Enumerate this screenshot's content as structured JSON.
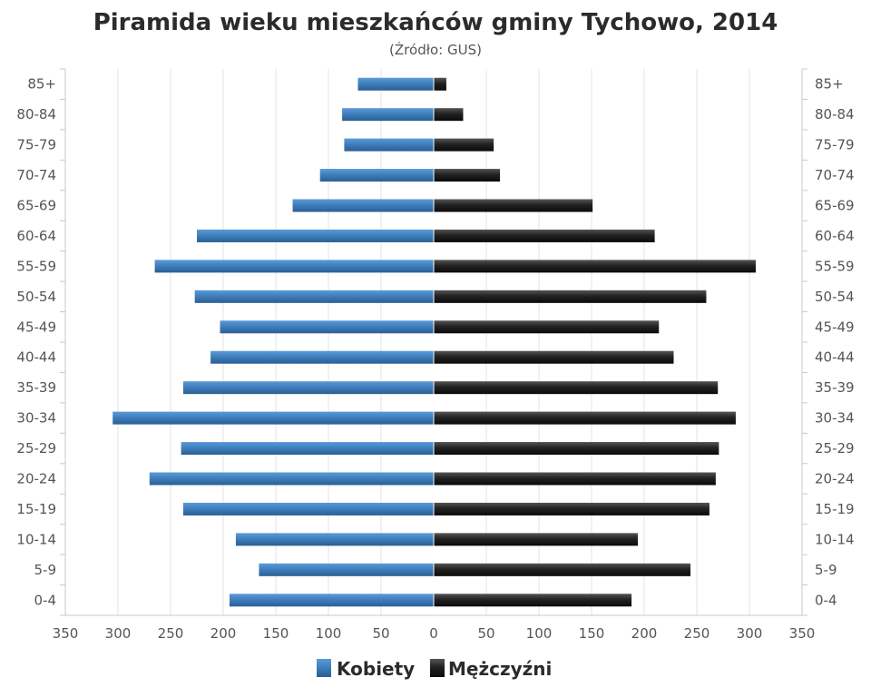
{
  "chart_data": {
    "type": "bar",
    "orientation": "horizontal-pyramid",
    "title": "Piramida wieku mieszkańców gminy Tychowo, 2014",
    "subtitle": "(Źródło: GUS)",
    "categories": [
      "85+",
      "80-84",
      "75-79",
      "70-74",
      "65-69",
      "60-64",
      "55-59",
      "50-54",
      "45-49",
      "40-44",
      "35-39",
      "30-34",
      "25-29",
      "20-24",
      "15-19",
      "10-14",
      "5-9",
      "0-4"
    ],
    "x_ticks": [
      "350",
      "300",
      "250",
      "200",
      "150",
      "100",
      "50",
      "0",
      "50",
      "100",
      "150",
      "200",
      "250",
      "300",
      "350"
    ],
    "xlim": [
      -350,
      350
    ],
    "grid": true,
    "legend_position": "bottom-center",
    "series": [
      {
        "name": "Kobiety",
        "color": "#3a78b4",
        "values": [
          72,
          87,
          85,
          108,
          134,
          225,
          265,
          227,
          203,
          212,
          238,
          305,
          240,
          270,
          238,
          188,
          166,
          194
        ]
      },
      {
        "name": "Mężczyźni",
        "color": "#1c1c1c",
        "values": [
          12,
          28,
          57,
          63,
          151,
          210,
          306,
          259,
          214,
          228,
          270,
          287,
          271,
          268,
          262,
          194,
          244,
          188
        ]
      }
    ]
  }
}
